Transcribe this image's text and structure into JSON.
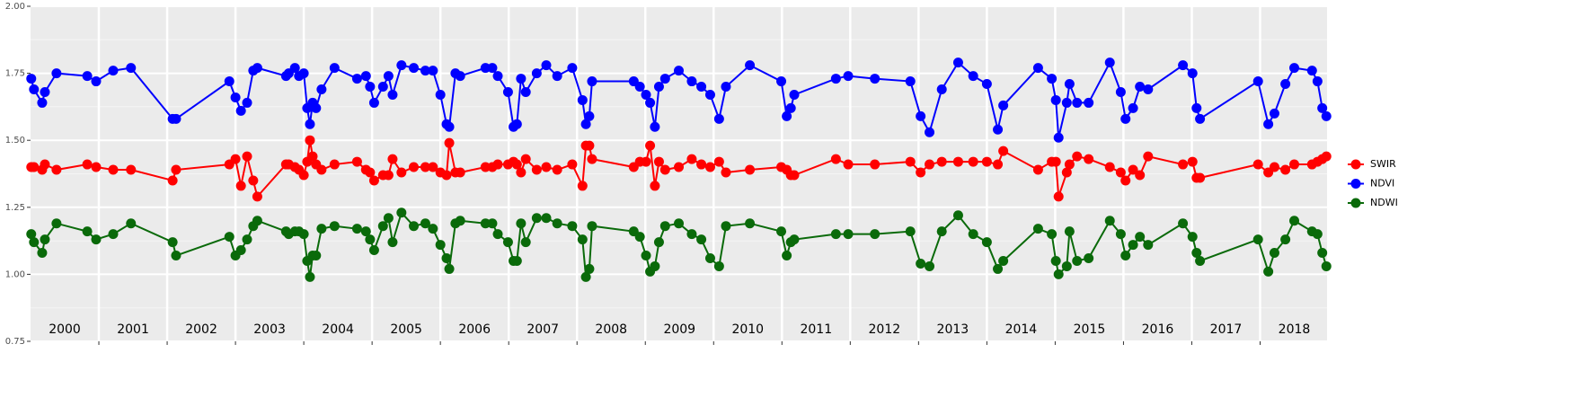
{
  "chart_data": {
    "type": "line",
    "x": [
      2000.01,
      2000.05,
      2000.17,
      2000.21,
      2000.38,
      2000.83,
      2000.96,
      2001.21,
      2001.47,
      2002.08,
      2002.13,
      2002.91,
      2003.0,
      2003.08,
      2003.17,
      2003.26,
      2003.32,
      2003.74,
      2003.78,
      2003.87,
      2003.93,
      2004.0,
      2004.05,
      2004.09,
      2004.13,
      2004.18,
      2004.26,
      2004.45,
      2004.78,
      2004.91,
      2004.97,
      2005.03,
      2005.16,
      2005.24,
      2005.3,
      2005.43,
      2005.61,
      2005.78,
      2005.89,
      2006.0,
      2006.09,
      2006.13,
      2006.22,
      2006.29,
      2006.66,
      2006.76,
      2006.84,
      2006.99,
      2007.07,
      2007.12,
      2007.18,
      2007.25,
      2007.41,
      2007.55,
      2007.71,
      2007.93,
      2008.08,
      2008.13,
      2008.18,
      2008.22,
      2008.83,
      2008.92,
      2009.01,
      2009.07,
      2009.14,
      2009.2,
      2009.29,
      2009.49,
      2009.68,
      2009.82,
      2009.95,
      2010.08,
      2010.18,
      2010.53,
      2010.99,
      2011.07,
      2011.13,
      2011.18,
      2011.79,
      2011.97,
      2012.36,
      2012.88,
      2013.03,
      2013.16,
      2013.34,
      2013.58,
      2013.8,
      2014.0,
      2014.16,
      2014.24,
      2014.75,
      2014.95,
      2015.01,
      2015.05,
      2015.17,
      2015.21,
      2015.32,
      2015.49,
      2015.8,
      2015.96,
      2016.03,
      2016.14,
      2016.24,
      2016.36,
      2016.87,
      2017.01,
      2017.07,
      2017.12,
      2017.97,
      2018.12,
      2018.21,
      2018.37,
      2018.5,
      2018.76,
      2018.84,
      2018.91,
      2018.97
    ],
    "series": [
      {
        "name": "SWIR",
        "color": "#ff0000",
        "values": [
          1.4,
          1.4,
          1.39,
          1.41,
          1.39,
          1.41,
          1.4,
          1.39,
          1.39,
          1.35,
          1.39,
          1.41,
          1.43,
          1.33,
          1.44,
          1.35,
          1.29,
          1.41,
          1.41,
          1.4,
          1.39,
          1.37,
          1.42,
          1.5,
          1.44,
          1.41,
          1.39,
          1.41,
          1.42,
          1.39,
          1.38,
          1.35,
          1.37,
          1.37,
          1.43,
          1.38,
          1.4,
          1.4,
          1.4,
          1.38,
          1.37,
          1.49,
          1.38,
          1.38,
          1.4,
          1.4,
          1.41,
          1.41,
          1.42,
          1.41,
          1.38,
          1.43,
          1.39,
          1.4,
          1.39,
          1.41,
          1.33,
          1.48,
          1.48,
          1.43,
          1.4,
          1.42,
          1.42,
          1.48,
          1.33,
          1.42,
          1.39,
          1.4,
          1.43,
          1.41,
          1.4,
          1.42,
          1.38,
          1.39,
          1.4,
          1.39,
          1.37,
          1.37,
          1.43,
          1.41,
          1.41,
          1.42,
          1.38,
          1.41,
          1.42,
          1.42,
          1.42,
          1.42,
          1.41,
          1.46,
          1.39,
          1.42,
          1.42,
          1.29,
          1.38,
          1.41,
          1.44,
          1.43,
          1.4,
          1.38,
          1.35,
          1.39,
          1.37,
          1.44,
          1.41,
          1.42,
          1.36,
          1.36,
          1.41,
          1.38,
          1.4,
          1.39,
          1.41,
          1.41,
          1.42,
          1.43,
          1.44
        ]
      },
      {
        "name": "NDVI",
        "color": "#0000ff",
        "values": [
          1.73,
          1.69,
          1.64,
          1.68,
          1.75,
          1.74,
          1.72,
          1.76,
          1.77,
          1.58,
          1.58,
          1.72,
          1.66,
          1.61,
          1.64,
          1.76,
          1.77,
          1.74,
          1.75,
          1.77,
          1.74,
          1.75,
          1.62,
          1.56,
          1.64,
          1.62,
          1.69,
          1.77,
          1.73,
          1.74,
          1.7,
          1.64,
          1.7,
          1.74,
          1.67,
          1.78,
          1.77,
          1.76,
          1.76,
          1.67,
          1.56,
          1.55,
          1.75,
          1.74,
          1.77,
          1.77,
          1.74,
          1.68,
          1.55,
          1.56,
          1.73,
          1.68,
          1.75,
          1.78,
          1.74,
          1.77,
          1.65,
          1.56,
          1.59,
          1.72,
          1.72,
          1.7,
          1.67,
          1.64,
          1.55,
          1.7,
          1.73,
          1.76,
          1.72,
          1.7,
          1.67,
          1.58,
          1.7,
          1.78,
          1.72,
          1.59,
          1.62,
          1.67,
          1.73,
          1.74,
          1.73,
          1.72,
          1.59,
          1.53,
          1.69,
          1.79,
          1.74,
          1.71,
          1.54,
          1.63,
          1.77,
          1.73,
          1.65,
          1.51,
          1.64,
          1.71,
          1.64,
          1.64,
          1.79,
          1.68,
          1.58,
          1.62,
          1.7,
          1.69,
          1.78,
          1.75,
          1.62,
          1.58,
          1.72,
          1.56,
          1.6,
          1.71,
          1.77,
          1.76,
          1.72,
          1.62,
          1.59
        ]
      },
      {
        "name": "NDWI",
        "color": "#0a6a0a",
        "values": [
          1.15,
          1.12,
          1.08,
          1.13,
          1.19,
          1.16,
          1.13,
          1.15,
          1.19,
          1.12,
          1.07,
          1.14,
          1.07,
          1.09,
          1.13,
          1.18,
          1.2,
          1.16,
          1.15,
          1.16,
          1.16,
          1.15,
          1.05,
          0.99,
          1.07,
          1.07,
          1.17,
          1.18,
          1.17,
          1.16,
          1.13,
          1.09,
          1.18,
          1.21,
          1.12,
          1.23,
          1.18,
          1.19,
          1.17,
          1.11,
          1.06,
          1.02,
          1.19,
          1.2,
          1.19,
          1.19,
          1.15,
          1.12,
          1.05,
          1.05,
          1.19,
          1.12,
          1.21,
          1.21,
          1.19,
          1.18,
          1.13,
          0.99,
          1.02,
          1.18,
          1.16,
          1.14,
          1.07,
          1.01,
          1.03,
          1.12,
          1.18,
          1.19,
          1.15,
          1.13,
          1.06,
          1.03,
          1.18,
          1.19,
          1.16,
          1.07,
          1.12,
          1.13,
          1.15,
          1.15,
          1.15,
          1.16,
          1.04,
          1.03,
          1.16,
          1.22,
          1.15,
          1.12,
          1.02,
          1.05,
          1.17,
          1.15,
          1.05,
          1.0,
          1.03,
          1.16,
          1.05,
          1.06,
          1.2,
          1.15,
          1.07,
          1.11,
          1.14,
          1.11,
          1.19,
          1.14,
          1.08,
          1.05,
          1.13,
          1.01,
          1.08,
          1.13,
          1.2,
          1.16,
          1.15,
          1.08,
          1.03
        ]
      }
    ],
    "xlim": [
      2000,
      2018.98
    ],
    "xticks": [
      2000,
      2001,
      2002,
      2003,
      2004,
      2005,
      2006,
      2007,
      2008,
      2009,
      2010,
      2011,
      2012,
      2013,
      2014,
      2015,
      2016,
      2017,
      2018
    ],
    "ylim": [
      0.75,
      2.0
    ],
    "yticks": [
      {
        "value": 0.75,
        "label": "0.75"
      },
      {
        "value": 1.0,
        "label": "1.00"
      },
      {
        "value": 1.25,
        "label": "1.25"
      },
      {
        "value": 1.5,
        "label": "1.50"
      },
      {
        "value": 1.75,
        "label": "1.75"
      },
      {
        "value": 2.0,
        "label": "2.00"
      }
    ],
    "grid": true,
    "legend": "right"
  }
}
